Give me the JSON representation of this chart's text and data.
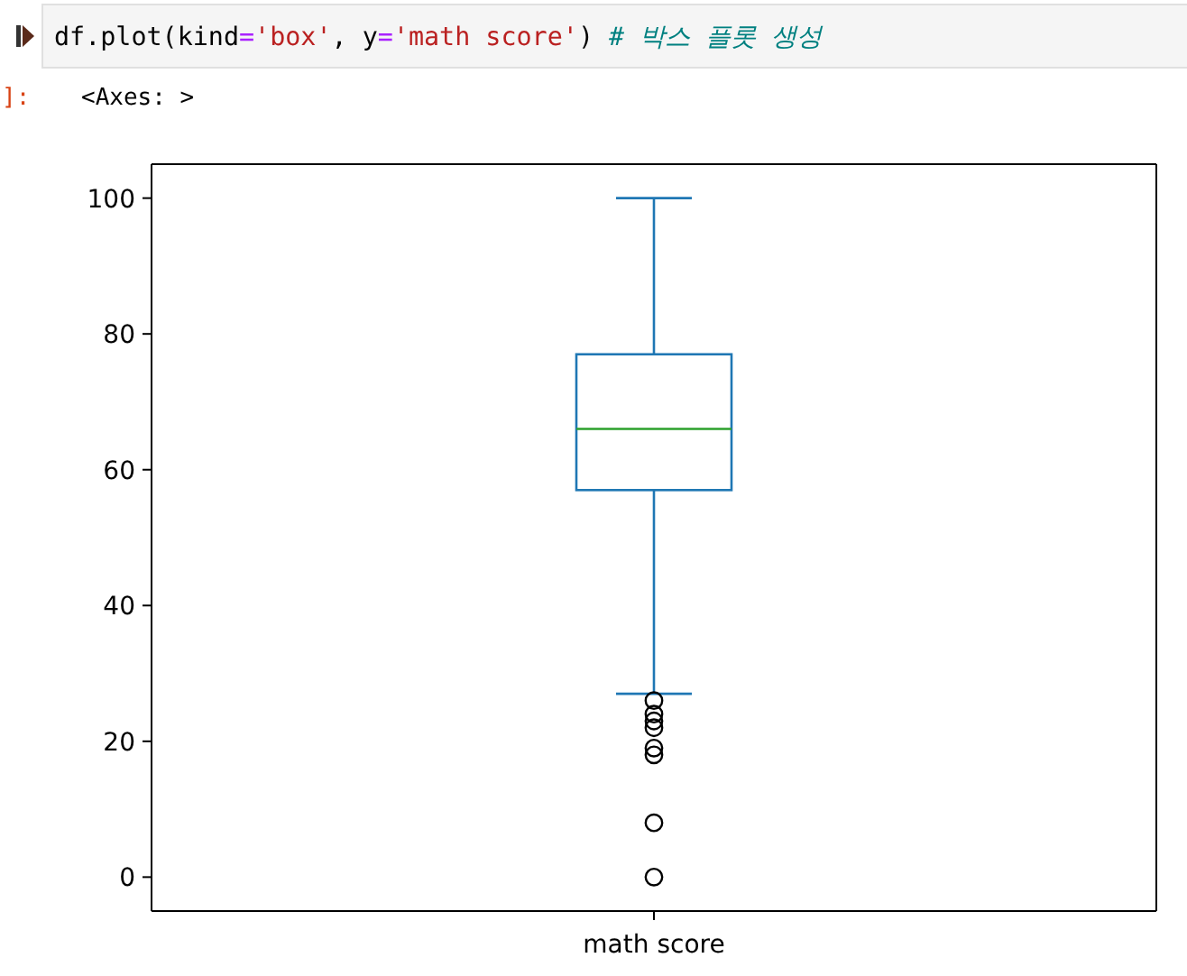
{
  "chart_data": {
    "type": "box",
    "categories": [
      "math score"
    ],
    "series": [
      {
        "color": "#1f77b4",
        "boxes": [
          {
            "low": 27,
            "q1": 57,
            "median": 66,
            "q3": 77,
            "high": 100,
            "outliers": [
              26,
              24,
              23,
              22,
              19,
              18,
              8,
              0
            ]
          }
        ]
      }
    ],
    "ylim": [
      -5,
      105
    ],
    "yticks": [
      0,
      20,
      40,
      60,
      80,
      100
    ],
    "annotations": [
      "df.plot(kind='box', y='math score')  # 박스 플롯 생성",
      "]:",
      "<Axes: >"
    ]
  }
}
